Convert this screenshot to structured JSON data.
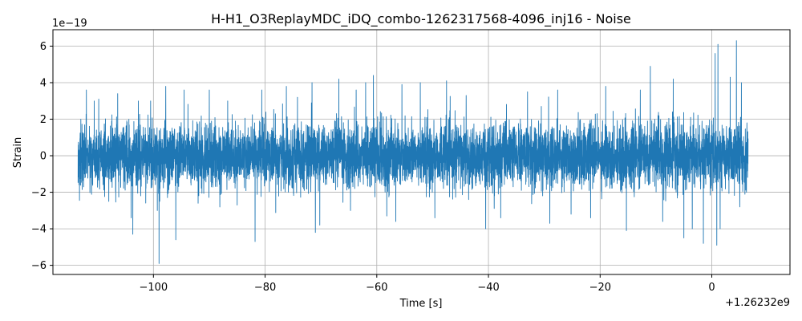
{
  "chart_data": {
    "type": "line",
    "title": "H-H1_O3ReplayMDC_iDQ_combo-1262317568-4096_inj16 - Noise",
    "xlabel": "Time [s]",
    "ylabel": "Strain",
    "x_offset_label": "+1.26232e9",
    "y_scale_label": "1e−19",
    "xlim": [
      -118,
      14
    ],
    "ylim": [
      -6.5,
      6.9
    ],
    "x_ticks": [
      -100,
      -80,
      -60,
      -40,
      -20,
      0
    ],
    "x_tick_labels": [
      "−100",
      "−80",
      "−60",
      "−40",
      "−20",
      "0"
    ],
    "y_ticks": [
      -6,
      -4,
      -2,
      0,
      2,
      4,
      6
    ],
    "y_tick_labels": [
      "−6",
      "−4",
      "−2",
      "0",
      "2",
      "4",
      "6"
    ],
    "grid": true,
    "line_color": "#1f77b4",
    "x_range_of_data": [
      -113.5,
      6.5
    ],
    "noise_sigma": 0.85,
    "peaks": [
      {
        "x": -113.0,
        "y": 2.0
      },
      {
        "x": -112.5,
        "y": -1.7
      },
      {
        "x": -112.0,
        "y": 3.6
      },
      {
        "x": -110.6,
        "y": 3.0
      },
      {
        "x": -109.8,
        "y": 3.1
      },
      {
        "x": -108.0,
        "y": -2.5
      },
      {
        "x": -106.4,
        "y": 3.4
      },
      {
        "x": -104.0,
        "y": -3.4
      },
      {
        "x": -103.7,
        "y": -4.3
      },
      {
        "x": -102.7,
        "y": 3.0
      },
      {
        "x": -100.5,
        "y": 3.0
      },
      {
        "x": -99.3,
        "y": -3.0
      },
      {
        "x": -99.0,
        "y": -5.9
      },
      {
        "x": -97.8,
        "y": 3.8
      },
      {
        "x": -96.0,
        "y": -4.6
      },
      {
        "x": -94.5,
        "y": 3.6
      },
      {
        "x": -92.0,
        "y": -2.6
      },
      {
        "x": -90.0,
        "y": 3.6
      },
      {
        "x": -86.7,
        "y": 3.0
      },
      {
        "x": -85.0,
        "y": -2.7
      },
      {
        "x": -81.8,
        "y": -4.7
      },
      {
        "x": -80.6,
        "y": 3.6
      },
      {
        "x": -76.2,
        "y": 3.8
      },
      {
        "x": -74.2,
        "y": 3.2
      },
      {
        "x": -71.6,
        "y": 4.0
      },
      {
        "x": -71.0,
        "y": -4.2
      },
      {
        "x": -70.2,
        "y": -3.8
      },
      {
        "x": -66.8,
        "y": 4.2
      },
      {
        "x": -64.7,
        "y": -3.0
      },
      {
        "x": -63.7,
        "y": 3.6
      },
      {
        "x": -62.0,
        "y": 4.0
      },
      {
        "x": -60.6,
        "y": 4.4
      },
      {
        "x": -58.2,
        "y": -3.3
      },
      {
        "x": -56.6,
        "y": -3.6
      },
      {
        "x": -55.5,
        "y": 3.9
      },
      {
        "x": -52.2,
        "y": 4.0
      },
      {
        "x": -49.6,
        "y": -3.4
      },
      {
        "x": -47.5,
        "y": 4.1
      },
      {
        "x": -44.0,
        "y": 3.3
      },
      {
        "x": -40.5,
        "y": -4.0
      },
      {
        "x": -37.8,
        "y": -3.4
      },
      {
        "x": -33.0,
        "y": 3.5
      },
      {
        "x": -29.0,
        "y": -3.7
      },
      {
        "x": -27.6,
        "y": 3.6
      },
      {
        "x": -25.2,
        "y": -3.2
      },
      {
        "x": -21.7,
        "y": -3.4
      },
      {
        "x": -19.0,
        "y": 3.8
      },
      {
        "x": -15.3,
        "y": -4.1
      },
      {
        "x": -12.8,
        "y": 3.6
      },
      {
        "x": -11.0,
        "y": 4.9
      },
      {
        "x": -8.8,
        "y": -3.6
      },
      {
        "x": -6.9,
        "y": 4.2
      },
      {
        "x": -5.0,
        "y": -4.5
      },
      {
        "x": -3.5,
        "y": -4.0
      },
      {
        "x": -1.5,
        "y": 4.6
      },
      {
        "x": -1.5,
        "y": -4.8
      },
      {
        "x": 0.6,
        "y": 5.6
      },
      {
        "x": 0.9,
        "y": -4.9
      },
      {
        "x": 1.1,
        "y": 6.1
      },
      {
        "x": 1.5,
        "y": -4.0
      },
      {
        "x": 3.3,
        "y": 4.3
      },
      {
        "x": 4.4,
        "y": 6.3
      },
      {
        "x": 5.0,
        "y": -2.8
      },
      {
        "x": 5.3,
        "y": 4.0
      },
      {
        "x": 6.2,
        "y": -2.0
      },
      {
        "x": 6.3,
        "y": 1.8
      }
    ]
  }
}
